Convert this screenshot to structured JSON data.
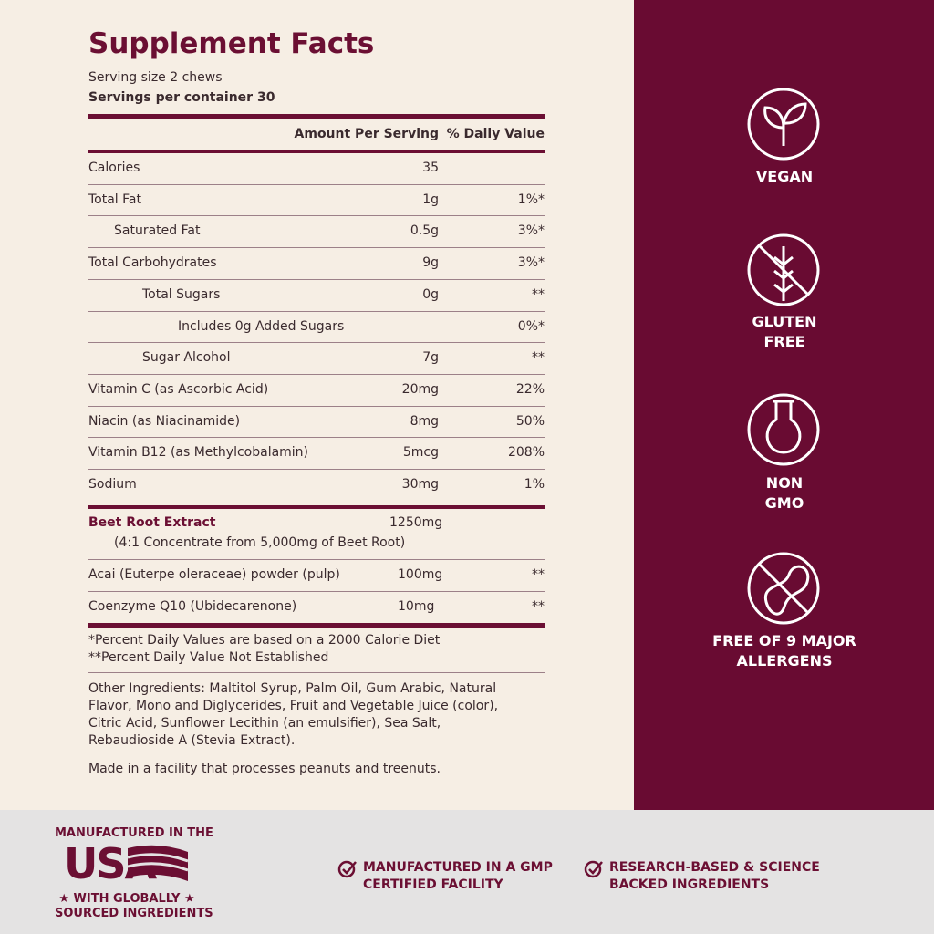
{
  "header": {
    "title": "Supplement Facts",
    "serving_size": "Serving size 2 chews",
    "servings": "Servings per container 30"
  },
  "table": {
    "headers": [
      "Amount Per Serving",
      "% Daily Value"
    ],
    "rows": [
      {
        "name": "Calories",
        "amount": "35"
      },
      {
        "name": "Total Fat",
        "amount": "1g",
        "dv": "1%*"
      },
      {
        "name": "Saturated Fat",
        "amount": "0.5g",
        "dv": "3%*"
      },
      {
        "name": "Total Carbohydrates",
        "amount": "9g",
        "dv": "3%*"
      },
      {
        "name": "Total Sugars",
        "amount": "0g",
        "dv": "**"
      },
      {
        "name": "Includes 0g Added Sugars",
        "dv": "0%*"
      },
      {
        "name": "Sugar Alcohol",
        "amount": "7g",
        "dv": "**"
      },
      {
        "name": "Vitamin C (as Ascorbic Acid)",
        "amount": "20mg",
        "dv": "22%"
      },
      {
        "name": "Niacin (as Niacinamide)",
        "amount": "8mg",
        "dv": "50%"
      },
      {
        "name": "Vitamin B12 (as Methylcobalamin)",
        "amount": "5mcg",
        "dv": "208%"
      },
      {
        "name": "Sodium",
        "amount": "30mg",
        "dv": "1%"
      }
    ],
    "extracts": [
      {
        "name": "Beet Root Extract",
        "note": "(4:1 Concentrate from 5,000mg of Beet Root)",
        "amount": "1250mg"
      },
      {
        "name": "Acai (Euterpe oleraceae) powder (pulp)",
        "amount": "100mg",
        "dv": "**"
      },
      {
        "name": "Coenzyme Q10 (Ubidecarenone)",
        "amount": "10mg",
        "dv": "**"
      }
    ]
  },
  "footnotes": [
    "*Percent Daily Values are based on a 2000 Calorie Diet",
    "**Percent Daily Value Not Established"
  ],
  "other_ingredients": "Other Ingredients: Maltitol Syrup, Palm Oil, Gum Arabic, Natural Flavor, Mono and Diglycerides, Fruit and Vegetable Juice (color), Citric Acid, Sunflower Lecithin (an emulsifier), Sea Salt, Rebaudioside A (Stevia Extract).",
  "facility_note": "Made in a facility that processes peanuts and treenuts.",
  "badges": [
    {
      "lines": [
        "VEGAN"
      ]
    },
    {
      "lines": [
        "GLUTEN",
        "FREE"
      ]
    },
    {
      "lines": [
        "NON",
        "GMO"
      ]
    },
    {
      "lines": [
        "FREE OF 9 MAJOR",
        "ALLERGENS"
      ]
    }
  ],
  "footer": {
    "made_in": "MANUFACTURED IN THE",
    "country": "USA",
    "sourced": [
      "WITH GLOBALLY",
      "SOURCED INGREDIENTS"
    ],
    "claims": [
      [
        "MANUFACTURED IN A GMP",
        "CERTIFIED FACILITY"
      ],
      [
        "RESEARCH-BASED & SCIENCE",
        "BACKED INGREDIENTS"
      ]
    ]
  }
}
